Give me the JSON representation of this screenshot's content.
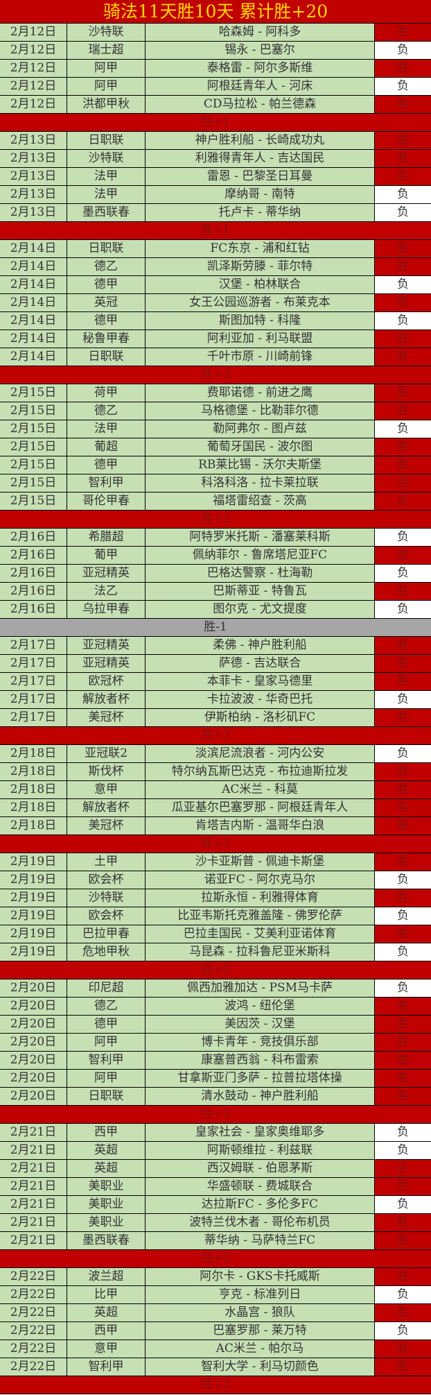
{
  "title": "骑法11天胜10天  累计胜+20",
  "colors": {
    "win_bg": "#c00000",
    "loss_bg": "#ffffff",
    "row_bg": "#c6e0b4",
    "negative_summary_bg": "#a6a6a6",
    "title_text": "#ffd700"
  },
  "groups": [
    {
      "summary": "胜+1",
      "rows": [
        {
          "date": "2月12日",
          "league": "沙特联",
          "match": "哈森姆 - 阿科多",
          "result": "胜"
        },
        {
          "date": "2月12日",
          "league": "瑞士超",
          "match": "锡永 - 巴塞尔",
          "result": "负"
        },
        {
          "date": "2月12日",
          "league": "阿甲",
          "match": "泰格雷 - 阿尔多斯维",
          "result": "胜"
        },
        {
          "date": "2月12日",
          "league": "阿甲",
          "match": "阿根廷青年人 - 河床",
          "result": "负"
        },
        {
          "date": "2月12日",
          "league": "洪都甲秋",
          "match": "CD马拉松 - 帕兰德森",
          "result": "胜"
        }
      ]
    },
    {
      "summary": "胜+1",
      "rows": [
        {
          "date": "2月13日",
          "league": "日职联",
          "match": "神户胜利船 - 长崎成功丸",
          "result": "胜"
        },
        {
          "date": "2月13日",
          "league": "沙特联",
          "match": "利雅得青年人 - 吉达国民",
          "result": "胜"
        },
        {
          "date": "2月13日",
          "league": "法甲",
          "match": "雷恩 - 巴黎圣日耳曼",
          "result": "胜"
        },
        {
          "date": "2月13日",
          "league": "法甲",
          "match": "摩纳哥 - 南特",
          "result": "负"
        },
        {
          "date": "2月13日",
          "league": "墨西联春",
          "match": "托卢卡 - 蒂华纳",
          "result": "负"
        }
      ]
    },
    {
      "summary": "胜+3",
      "rows": [
        {
          "date": "2月14日",
          "league": "日职联",
          "match": "FC东京 - 浦和红钻",
          "result": "胜"
        },
        {
          "date": "2月14日",
          "league": "德乙",
          "match": "凯泽斯劳滕 - 菲尔特",
          "result": "胜"
        },
        {
          "date": "2月14日",
          "league": "德甲",
          "match": "汉堡 - 柏林联合",
          "result": "负"
        },
        {
          "date": "2月14日",
          "league": "英冠",
          "match": "女王公园巡游者 - 布莱克本",
          "result": "胜"
        },
        {
          "date": "2月14日",
          "league": "德甲",
          "match": "斯图加特 - 科隆",
          "result": "负"
        },
        {
          "date": "2月14日",
          "league": "秘鲁甲春",
          "match": "阿利亚加 - 利马联盟",
          "result": "胜"
        },
        {
          "date": "2月14日",
          "league": "日职联",
          "match": "千叶市原 - 川崎前锋",
          "result": "胜"
        }
      ]
    },
    {
      "summary": "胜+3",
      "rows": [
        {
          "date": "2月15日",
          "league": "荷甲",
          "match": "费耶诺德 - 前进之鹰",
          "result": "胜"
        },
        {
          "date": "2月15日",
          "league": "德乙",
          "match": "马格德堡 - 比勒菲尔德",
          "result": "胜"
        },
        {
          "date": "2月15日",
          "league": "法甲",
          "match": "勒阿弗尔 - 图卢兹",
          "result": "负"
        },
        {
          "date": "2月15日",
          "league": "葡超",
          "match": "葡萄牙国民 - 波尔图",
          "result": "胜"
        },
        {
          "date": "2月15日",
          "league": "德甲",
          "match": "RB莱比锡 - 沃尔夫斯堡",
          "result": "胜"
        },
        {
          "date": "2月15日",
          "league": "智利甲",
          "match": "科洛科洛 - 拉卡莱拉联",
          "result": "走"
        },
        {
          "date": "2月15日",
          "league": "哥伦甲春",
          "match": "福塔雷绍查 - 茨高",
          "result": "走"
        }
      ]
    },
    {
      "summary": "胜-1",
      "negative": true,
      "rows": [
        {
          "date": "2月16日",
          "league": "希腊超",
          "match": "阿特罗米托斯 - 潘塞莱科斯",
          "result": "负"
        },
        {
          "date": "2月16日",
          "league": "葡甲",
          "match": "佩纳菲尔 - 鲁席塔尼亚FC",
          "result": "胜"
        },
        {
          "date": "2月16日",
          "league": "亚冠精英",
          "match": "巴格达警察 - 杜海勒",
          "result": "负"
        },
        {
          "date": "2月16日",
          "league": "法乙",
          "match": "巴斯蒂亚 - 特鲁瓦",
          "result": "胜"
        },
        {
          "date": "2月16日",
          "league": "乌拉甲春",
          "match": "图尔克 - 尤文提度",
          "result": "负"
        }
      ]
    },
    {
      "summary": "胜+3",
      "rows": [
        {
          "date": "2月17日",
          "league": "亚冠精英",
          "match": "柔佛 - 神户胜利船",
          "result": "胜"
        },
        {
          "date": "2月17日",
          "league": "亚冠精英",
          "match": "萨德 - 吉达联合",
          "result": "胜"
        },
        {
          "date": "2月17日",
          "league": "欧冠杯",
          "match": "本菲卡 - 皇家马德里",
          "result": "胜"
        },
        {
          "date": "2月17日",
          "league": "解放者杯",
          "match": "卡拉波波 - 华奇巴托",
          "result": "负"
        },
        {
          "date": "2月17日",
          "league": "美冠杯",
          "match": "伊斯柏纳 - 洛杉矶FC",
          "result": "胜"
        }
      ]
    },
    {
      "summary": "胜+3",
      "rows": [
        {
          "date": "2月18日",
          "league": "亚冠联2",
          "match": "淡滨尼流浪者 - 河内公安",
          "result": "负"
        },
        {
          "date": "2月18日",
          "league": "斯伐杯",
          "match": "特尔纳瓦斯巴达克 - 布拉迪斯拉发",
          "result": "胜"
        },
        {
          "date": "2月18日",
          "league": "意甲",
          "match": "AC米兰 - 科莫",
          "result": "胜"
        },
        {
          "date": "2月18日",
          "league": "解放者杯",
          "match": "瓜亚基尔巴塞罗那 - 阿根廷青年人",
          "result": "胜"
        },
        {
          "date": "2月18日",
          "league": "美冠杯",
          "match": "肯塔吉内斯 - 温哥华白浪",
          "result": "胜"
        }
      ]
    },
    {
      "summary": "胜+0",
      "rows": [
        {
          "date": "2月19日",
          "league": "土甲",
          "match": "沙卡亚斯普 - 佩迪卡斯堡",
          "result": "胜"
        },
        {
          "date": "2月19日",
          "league": "欧会杯",
          "match": "诺亚FC - 阿尔克马尔",
          "result": "负"
        },
        {
          "date": "2月19日",
          "league": "沙特联",
          "match": "拉斯永恒 - 利雅得体育",
          "result": "胜"
        },
        {
          "date": "2月19日",
          "league": "欧会杯",
          "match": "比亚韦斯托克雅盖隆 - 佛罗伦萨",
          "result": "负"
        },
        {
          "date": "2月19日",
          "league": "巴拉甲春",
          "match": "巴拉圭国民 - 艾美利亚诺体育",
          "result": "胜"
        },
        {
          "date": "2月19日",
          "league": "危地甲秋",
          "match": "马昆森 - 拉科鲁尼亚米斯科",
          "result": "负"
        }
      ]
    },
    {
      "summary": "胜+5",
      "rows": [
        {
          "date": "2月20日",
          "league": "印尼超",
          "match": "佩西加雅加达 - PSM马卡萨",
          "result": "负"
        },
        {
          "date": "2月20日",
          "league": "德乙",
          "match": "波鸿 - 纽伦堡",
          "result": "胜"
        },
        {
          "date": "2月20日",
          "league": "德甲",
          "match": "美因茨 - 汉堡",
          "result": "胜"
        },
        {
          "date": "2月20日",
          "league": "阿甲",
          "match": "博卡青年 - 竞技俱乐部",
          "result": "胜"
        },
        {
          "date": "2月20日",
          "league": "智利甲",
          "match": "康塞普西翁 - 科布雷索",
          "result": "胜"
        },
        {
          "date": "2月20日",
          "league": "阿甲",
          "match": "甘拿斯亚门多萨 - 拉普拉塔体操",
          "result": "胜"
        },
        {
          "date": "2月20日",
          "league": "日职联",
          "match": "清水鼓动 - 神户胜利船",
          "result": "胜"
        }
      ]
    },
    {
      "summary": "胜+0",
      "rows": [
        {
          "date": "2月21日",
          "league": "西甲",
          "match": "皇家社会 - 皇家奥维耶多",
          "result": "负"
        },
        {
          "date": "2月21日",
          "league": "英超",
          "match": "阿斯顿维拉 - 利兹联",
          "result": "负"
        },
        {
          "date": "2月21日",
          "league": "英超",
          "match": "西汉姆联 - 伯恩茅斯",
          "result": "走"
        },
        {
          "date": "2月21日",
          "league": "美职业",
          "match": "华盛顿联 - 费城联合",
          "result": "胜"
        },
        {
          "date": "2月21日",
          "league": "美职业",
          "match": "达拉斯FC - 多伦多FC",
          "result": "负"
        },
        {
          "date": "2月21日",
          "league": "美职业",
          "match": "波特兰伐木者 - 哥伦布机员",
          "result": "胜"
        },
        {
          "date": "2月21日",
          "league": "墨西联春",
          "match": "蒂华纳 - 马萨特兰FC",
          "result": "胜"
        }
      ]
    },
    {
      "summary": "胜+2",
      "rows": [
        {
          "date": "2月22日",
          "league": "波兰超",
          "match": "阿尔卡 - GKS卡托威斯",
          "result": "胜"
        },
        {
          "date": "2月22日",
          "league": "比甲",
          "match": "亨克 - 标准列日",
          "result": "负"
        },
        {
          "date": "2月22日",
          "league": "英超",
          "match": "水晶宫 - 狼队",
          "result": "胜"
        },
        {
          "date": "2月22日",
          "league": "西甲",
          "match": "巴塞罗那 - 莱万特",
          "result": "负"
        },
        {
          "date": "2月22日",
          "league": "意甲",
          "match": "AC米兰 - 帕尔马",
          "result": "胜"
        },
        {
          "date": "2月22日",
          "league": "智利甲",
          "match": "智利大学 - 利马切颜色",
          "result": "胜"
        }
      ]
    }
  ]
}
